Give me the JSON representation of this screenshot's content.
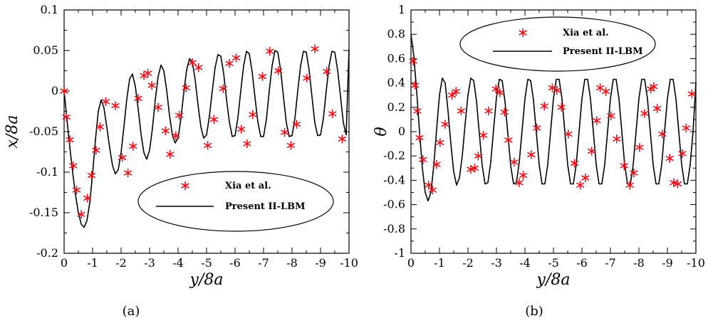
{
  "figure": {
    "captions": [
      "(a)",
      "(b)"
    ]
  },
  "chart_data": [
    {
      "type": "line",
      "xlabel": "y/8a",
      "ylabel": "x/8a",
      "xlim": [
        0,
        -10
      ],
      "ylim": [
        -0.2,
        0.1
      ],
      "x_ticks": [
        0,
        -1,
        -2,
        -3,
        -4,
        -5,
        -6,
        -7,
        -8,
        -9,
        -10
      ],
      "x_tick_labels": [
        "0",
        "-1",
        "-2",
        "-3",
        "-4",
        "-5",
        "-6",
        "-7",
        "-8",
        "-9",
        "-10"
      ],
      "y_ticks": [
        0.1,
        0.05,
        0,
        -0.05,
        -0.1,
        -0.15,
        -0.2
      ],
      "y_tick_labels": [
        "0.1",
        "0.05",
        "0",
        "-0.05",
        "-0.1",
        "-0.15",
        "-0.2"
      ],
      "legend": {
        "placement": "lower-center",
        "entries": [
          "Xia et al.",
          "Present II-LBM"
        ]
      },
      "series": [
        {
          "name": "Xia et al.",
          "style": "markers",
          "marker": "asterisk",
          "color": "#e8141c",
          "x": [
            0,
            -0.08,
            -0.2,
            -0.32,
            -0.44,
            -0.6,
            -0.82,
            -0.96,
            -1.12,
            -1.26,
            -1.46,
            -1.8,
            -2.04,
            -2.24,
            -2.42,
            -2.6,
            -2.8,
            -2.94,
            -3.08,
            -3.3,
            -3.56,
            -3.72,
            -3.92,
            -4.04,
            -4.28,
            -4.5,
            -4.72,
            -5.04,
            -5.26,
            -5.58,
            -5.8,
            -6.04,
            -6.22,
            -6.42,
            -6.62,
            -6.96,
            -7.22,
            -7.52,
            -7.74,
            -7.96,
            -8.16,
            -8.52,
            -8.8,
            -9.22,
            -9.42,
            -9.76
          ],
          "y": [
            0,
            -0.032,
            -0.06,
            -0.092,
            -0.122,
            -0.152,
            -0.132,
            -0.104,
            -0.073,
            -0.044,
            -0.013,
            -0.018,
            -0.082,
            -0.101,
            -0.068,
            -0.009,
            0.019,
            0.022,
            0.007,
            -0.02,
            -0.049,
            -0.078,
            -0.055,
            -0.03,
            0.004,
            0.035,
            0.029,
            -0.067,
            -0.035,
            0.003,
            0.034,
            0.041,
            -0.047,
            -0.065,
            -0.029,
            0.018,
            0.049,
            0.025,
            -0.051,
            -0.067,
            -0.041,
            0.016,
            0.052,
            0.024,
            -0.028,
            -0.059
          ]
        },
        {
          "name": "Present II-LBM",
          "style": "line",
          "color": "#000000",
          "x": [
            0,
            -0.1,
            -0.2,
            -0.3,
            -0.4,
            -0.5,
            -0.6,
            -0.7,
            -0.8,
            -0.9,
            -1.0,
            -1.1,
            -1.2,
            -1.3,
            -1.4,
            -1.5,
            -1.6,
            -1.7,
            -1.8,
            -1.9,
            -2.0,
            -2.1,
            -2.2,
            -2.3,
            -2.4,
            -2.5,
            -2.6,
            -2.7,
            -2.8,
            -2.9,
            -3.0,
            -3.1,
            -3.2,
            -3.3,
            -3.4,
            -3.5,
            -3.6,
            -3.7,
            -3.8,
            -3.9,
            -4.0,
            -4.1,
            -4.2,
            -4.3,
            -4.4,
            -4.5,
            -4.6,
            -4.7,
            -4.8,
            -4.9,
            -5.0,
            -5.1,
            -5.2,
            -5.3,
            -5.4,
            -5.5,
            -5.6,
            -5.7,
            -5.8,
            -5.9,
            -6.0,
            -6.1,
            -6.2,
            -6.3,
            -6.4,
            -6.5,
            -6.6,
            -6.7,
            -6.8,
            -6.9,
            -7.0,
            -7.1,
            -7.2,
            -7.3,
            -7.4,
            -7.5,
            -7.6,
            -7.7,
            -7.8,
            -7.9,
            -8.0,
            -8.1,
            -8.2,
            -8.3,
            -8.4,
            -8.5,
            -8.6,
            -8.7,
            -8.8,
            -8.9,
            -9.0,
            -9.1,
            -9.2,
            -9.3,
            -9.4,
            -9.5,
            -9.6,
            -9.7,
            -9.8,
            -9.9,
            -10.0
          ],
          "y": [
            0.0,
            -0.035,
            -0.069,
            -0.1,
            -0.128,
            -0.15,
            -0.164,
            -0.168,
            -0.16,
            -0.138,
            -0.102,
            -0.06,
            -0.025,
            -0.011,
            -0.021,
            -0.045,
            -0.07,
            -0.092,
            -0.102,
            -0.097,
            -0.076,
            -0.044,
            -0.01,
            0.015,
            0.021,
            0.006,
            -0.022,
            -0.053,
            -0.076,
            -0.084,
            -0.073,
            -0.046,
            -0.011,
            0.018,
            0.032,
            0.025,
            0.001,
            -0.03,
            -0.054,
            -0.064,
            -0.058,
            -0.034,
            -0.002,
            0.026,
            0.04,
            0.036,
            0.014,
            -0.017,
            -0.044,
            -0.058,
            -0.054,
            -0.031,
            0.0,
            0.029,
            0.045,
            0.043,
            0.022,
            -0.01,
            -0.038,
            -0.056,
            -0.055,
            -0.033,
            0.0,
            0.031,
            0.049,
            0.046,
            0.024,
            -0.008,
            -0.038,
            -0.056,
            -0.056,
            -0.035,
            0.0,
            0.031,
            0.05,
            0.048,
            0.026,
            -0.007,
            -0.039,
            -0.056,
            -0.055,
            -0.034,
            0.0,
            0.031,
            0.049,
            0.048,
            0.026,
            -0.007,
            -0.039,
            -0.055,
            -0.054,
            -0.034,
            0.0,
            0.031,
            0.049,
            0.048,
            0.026,
            -0.006,
            -0.039,
            -0.054,
            0.051
          ]
        }
      ]
    },
    {
      "type": "line",
      "xlabel": "y/8a",
      "ylabel": "θ",
      "xlim": [
        0,
        -10
      ],
      "ylim": [
        -1,
        1
      ],
      "x_ticks": [
        0,
        -1,
        -2,
        -3,
        -4,
        -5,
        -6,
        -7,
        -8,
        -9,
        -10
      ],
      "x_tick_labels": [
        "0",
        "-1",
        "-2",
        "-3",
        "-4",
        "-5",
        "-6",
        "-7",
        "-8",
        "-9",
        "-10"
      ],
      "y_ticks": [
        1,
        0.8,
        0.6,
        0.4,
        0.2,
        0,
        -0.2,
        -0.4,
        -0.6,
        -0.8,
        -1
      ],
      "y_tick_labels": [
        "1",
        "0.8",
        "0.6",
        "0.4",
        "0.2",
        "0",
        "-0.2",
        "-0.4",
        "-0.6",
        "-0.8",
        "-1"
      ],
      "legend": {
        "placement": "top-center",
        "entries": [
          "Xia et al.",
          "Present II-LBM"
        ]
      },
      "series": [
        {
          "name": "Xia et al.",
          "style": "markers",
          "marker": "asterisk",
          "color": "#e8141c",
          "x": [
            -0.08,
            -0.14,
            -0.22,
            -0.3,
            -0.42,
            -0.62,
            -0.76,
            -0.9,
            -1.02,
            -1.2,
            -1.44,
            -1.58,
            -1.76,
            -2.1,
            -2.24,
            -2.36,
            -2.54,
            -2.72,
            -2.98,
            -3.12,
            -3.28,
            -3.42,
            -3.62,
            -3.8,
            -3.94,
            -4.22,
            -4.42,
            -4.68,
            -4.96,
            -5.12,
            -5.28,
            -5.52,
            -5.74,
            -5.94,
            -6.12,
            -6.34,
            -6.52,
            -6.64,
            -6.84,
            -7.02,
            -7.22,
            -7.48,
            -7.68,
            -7.82,
            -8.02,
            -8.2,
            -8.42,
            -8.52,
            -8.64,
            -8.82,
            -9.08,
            -9.22,
            -9.36,
            -9.52,
            -9.66,
            -9.86
          ],
          "y": [
            0.58,
            0.38,
            0.17,
            -0.05,
            -0.23,
            -0.44,
            -0.48,
            -0.27,
            -0.09,
            0.06,
            0.3,
            0.33,
            0.17,
            -0.31,
            -0.3,
            -0.2,
            -0.03,
            0.17,
            0.35,
            0.32,
            0.16,
            -0.07,
            -0.25,
            -0.42,
            -0.36,
            -0.19,
            0.03,
            0.21,
            0.36,
            0.34,
            0.2,
            -0.02,
            -0.26,
            -0.44,
            -0.38,
            -0.16,
            0.09,
            0.36,
            0.33,
            0.13,
            -0.06,
            -0.28,
            -0.44,
            -0.34,
            -0.13,
            0.15,
            0.35,
            0.37,
            0.19,
            -0.02,
            -0.22,
            -0.42,
            -0.43,
            -0.18,
            0.03,
            0.31
          ]
        },
        {
          "name": "Present II-LBM",
          "style": "line",
          "color": "#000000",
          "x": [
            0,
            -0.1,
            -0.2,
            -0.3,
            -0.4,
            -0.5,
            -0.6,
            -0.7,
            -0.8,
            -0.9,
            -1.0,
            -1.1,
            -1.2,
            -1.3,
            -1.4,
            -1.5,
            -1.6,
            -1.7,
            -1.8,
            -1.9,
            -2.0,
            -2.1,
            -2.2,
            -2.3,
            -2.4,
            -2.5,
            -2.6,
            -2.7,
            -2.8,
            -2.9,
            -3.0,
            -3.1,
            -3.2,
            -3.3,
            -3.4,
            -3.5,
            -3.6,
            -3.7,
            -3.8,
            -3.9,
            -4.0,
            -4.1,
            -4.2,
            -4.3,
            -4.4,
            -4.5,
            -4.6,
            -4.7,
            -4.8,
            -4.9,
            -5.0,
            -5.1,
            -5.2,
            -5.3,
            -5.4,
            -5.5,
            -5.6,
            -5.7,
            -5.8,
            -5.9,
            -6.0,
            -6.1,
            -6.2,
            -6.3,
            -6.4,
            -6.5,
            -6.6,
            -6.7,
            -6.8,
            -6.9,
            -7.0,
            -7.1,
            -7.2,
            -7.3,
            -7.4,
            -7.5,
            -7.6,
            -7.7,
            -7.8,
            -7.9,
            -8.0,
            -8.1,
            -8.2,
            -8.3,
            -8.4,
            -8.5,
            -8.6,
            -8.7,
            -8.8,
            -8.9,
            -9.0,
            -9.1,
            -9.2,
            -9.3,
            -9.4,
            -9.5,
            -9.6,
            -9.7,
            -9.8,
            -9.9,
            -10.0
          ],
          "y": [
            0.8,
            0.62,
            0.33,
            0.0,
            -0.3,
            -0.5,
            -0.57,
            -0.5,
            -0.28,
            0.02,
            0.3,
            0.44,
            0.4,
            0.17,
            -0.1,
            -0.33,
            -0.44,
            -0.38,
            -0.2,
            0.06,
            0.3,
            0.44,
            0.42,
            0.25,
            -0.02,
            -0.28,
            -0.43,
            -0.42,
            -0.25,
            0.02,
            0.28,
            0.43,
            0.42,
            0.25,
            -0.02,
            -0.28,
            -0.43,
            -0.42,
            -0.25,
            0.01,
            0.27,
            0.43,
            0.42,
            0.26,
            -0.01,
            -0.27,
            -0.43,
            -0.43,
            -0.27,
            0.0,
            0.27,
            0.43,
            0.43,
            0.27,
            0.0,
            -0.27,
            -0.43,
            -0.43,
            -0.27,
            0.0,
            0.27,
            0.43,
            0.43,
            0.27,
            0.0,
            -0.27,
            -0.43,
            -0.43,
            -0.27,
            0.0,
            0.27,
            0.43,
            0.43,
            0.27,
            0.0,
            -0.27,
            -0.43,
            -0.43,
            -0.27,
            0.0,
            0.27,
            0.43,
            0.43,
            0.27,
            0.0,
            -0.27,
            -0.43,
            -0.43,
            -0.27,
            0.0,
            0.27,
            0.43,
            0.43,
            0.27,
            0.0,
            -0.27,
            -0.43,
            -0.43,
            -0.27,
            0.0,
            0.4
          ]
        }
      ]
    }
  ]
}
